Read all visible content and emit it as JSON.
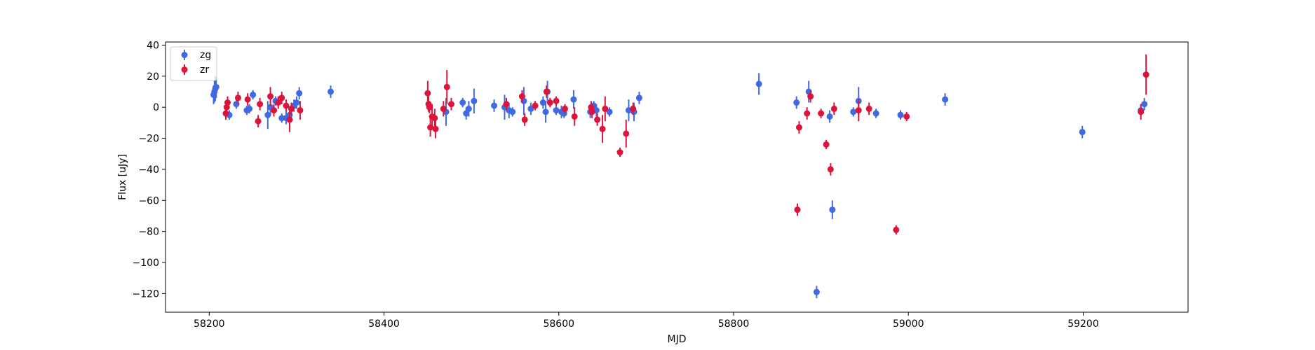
{
  "chart_data": {
    "type": "scatter",
    "title": "",
    "xlabel": "MJD",
    "ylabel": "Flux [uJy]",
    "xlim": [
      58150,
      59320
    ],
    "ylim": [
      -132,
      42
    ],
    "xticks": [
      58200,
      58400,
      58600,
      58800,
      59000,
      59200
    ],
    "yticks": [
      40,
      20,
      0,
      -20,
      -40,
      -60,
      -80,
      -100,
      -120
    ],
    "grid": false,
    "legend_position": "upper-left",
    "error_bars": true,
    "series": [
      {
        "name": "zg",
        "color": "#4169e1",
        "points": [
          [
            58205,
            8,
            6
          ],
          [
            58206,
            10,
            7
          ],
          [
            58207,
            12,
            8
          ],
          [
            58208,
            13,
            7
          ],
          [
            58223,
            -5,
            3
          ],
          [
            58231,
            2,
            3
          ],
          [
            58243,
            -2,
            3
          ],
          [
            58246,
            -1,
            3
          ],
          [
            58250,
            8,
            3
          ],
          [
            58267,
            -5,
            9
          ],
          [
            58270,
            0,
            5
          ],
          [
            58276,
            4,
            3
          ],
          [
            58283,
            -7,
            3
          ],
          [
            58288,
            -7,
            4
          ],
          [
            58292,
            -5,
            4
          ],
          [
            58297,
            1,
            4
          ],
          [
            58300,
            3,
            4
          ],
          [
            58303,
            9,
            4
          ],
          [
            58339,
            10,
            4
          ],
          [
            58471,
            -3,
            9
          ],
          [
            58490,
            3,
            3
          ],
          [
            58494,
            -4,
            4
          ],
          [
            58497,
            -1,
            5
          ],
          [
            58503,
            4,
            8
          ],
          [
            58526,
            1,
            4
          ],
          [
            58538,
            0,
            8
          ],
          [
            58543,
            -2,
            5
          ],
          [
            58547,
            -3,
            3
          ],
          [
            58560,
            4,
            9
          ],
          [
            58568,
            -1,
            4
          ],
          [
            58582,
            3,
            4
          ],
          [
            58585,
            -3,
            7
          ],
          [
            58587,
            10,
            7
          ],
          [
            58597,
            -2,
            3
          ],
          [
            58603,
            -3,
            4
          ],
          [
            58606,
            -4,
            3
          ],
          [
            58617,
            5,
            6
          ],
          [
            58636,
            -3,
            4
          ],
          [
            58640,
            1,
            3
          ],
          [
            58643,
            -2,
            4
          ],
          [
            58658,
            -3,
            3
          ],
          [
            58680,
            -2,
            7
          ],
          [
            58686,
            -3,
            6
          ],
          [
            58692,
            6,
            4
          ],
          [
            58829,
            15,
            7
          ],
          [
            58872,
            3,
            4
          ],
          [
            58886,
            10,
            7
          ],
          [
            58895,
            -119,
            4
          ],
          [
            58910,
            -6,
            4
          ],
          [
            58913,
            -66,
            6
          ],
          [
            58937,
            -3,
            3
          ],
          [
            58943,
            4,
            9
          ],
          [
            58963,
            -4,
            3
          ],
          [
            58991,
            -5,
            3
          ],
          [
            59042,
            5,
            4
          ],
          [
            59199,
            -16,
            4
          ],
          [
            59266,
            -2,
            4
          ],
          [
            59270,
            2,
            4
          ]
        ]
      },
      {
        "name": "zr",
        "color": "#dc143c",
        "points": [
          [
            58219,
            -4,
            4
          ],
          [
            58220,
            0,
            4
          ],
          [
            58221,
            3,
            4
          ],
          [
            58233,
            6,
            4
          ],
          [
            58244,
            5,
            4
          ],
          [
            58256,
            -9,
            4
          ],
          [
            58258,
            2,
            4
          ],
          [
            58270,
            7,
            6
          ],
          [
            58274,
            -2,
            4
          ],
          [
            58279,
            3,
            4
          ],
          [
            58283,
            6,
            4
          ],
          [
            58288,
            1,
            4
          ],
          [
            58292,
            -8,
            8
          ],
          [
            58294,
            -1,
            4
          ],
          [
            58304,
            -2,
            6
          ],
          [
            58450,
            9,
            8
          ],
          [
            58451,
            2,
            5
          ],
          [
            58452,
            0,
            4
          ],
          [
            58453,
            -13,
            6
          ],
          [
            58455,
            -6,
            8
          ],
          [
            58458,
            -7,
            6
          ],
          [
            58459,
            -14,
            6
          ],
          [
            58468,
            -1,
            5
          ],
          [
            58472,
            13,
            11
          ],
          [
            58477,
            2,
            4
          ],
          [
            58540,
            2,
            4
          ],
          [
            58558,
            7,
            4
          ],
          [
            58561,
            -8,
            4
          ],
          [
            58573,
            1,
            3
          ],
          [
            58586,
            10,
            4
          ],
          [
            58590,
            3,
            3
          ],
          [
            58597,
            4,
            3
          ],
          [
            58607,
            -1,
            3
          ],
          [
            58618,
            -6,
            6
          ],
          [
            58637,
            0,
            4
          ],
          [
            58638,
            -3,
            4
          ],
          [
            58644,
            -8,
            4
          ],
          [
            58650,
            -14,
            9
          ],
          [
            58653,
            -1,
            8
          ],
          [
            58670,
            -29,
            3
          ],
          [
            58677,
            -17,
            9
          ],
          [
            58685,
            -1,
            4
          ],
          [
            58875,
            -13,
            4
          ],
          [
            58873,
            -66,
            4
          ],
          [
            58884,
            -4,
            4
          ],
          [
            58888,
            7,
            4
          ],
          [
            58900,
            -4,
            3
          ],
          [
            58906,
            -24,
            3
          ],
          [
            58911,
            -40,
            4
          ],
          [
            58915,
            -1,
            4
          ],
          [
            58943,
            -2,
            7
          ],
          [
            58955,
            -1,
            4
          ],
          [
            58986,
            -79,
            3
          ],
          [
            58998,
            -6,
            3
          ],
          [
            59266,
            -3,
            5
          ],
          [
            59272,
            21,
            13
          ]
        ]
      }
    ]
  }
}
